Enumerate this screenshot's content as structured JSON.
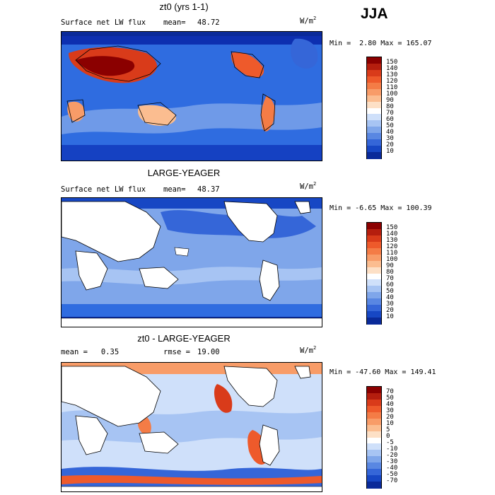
{
  "season": "JJA",
  "panels": [
    {
      "title": "zt0 (yrs 1-1)",
      "left_label": "Surface net LW flux",
      "mean_label": "mean=",
      "mean_value": "48.72",
      "units_base": "W/m",
      "units_sup": "2",
      "min_label": "Min =",
      "min_value": "2.80",
      "max_label": "Max =",
      "max_value": "165.07",
      "colorbar_ticks": [
        "150",
        "140",
        "130",
        "120",
        "110",
        "100",
        "90",
        "80",
        "70",
        "60",
        "50",
        "40",
        "30",
        "20",
        "10"
      ],
      "colorbar_colors": [
        "#8b0000",
        "#b51e0e",
        "#d93b1a",
        "#ee5a2b",
        "#f47c46",
        "#f89c68",
        "#fbbd90",
        "#fde0c6",
        "#ffffff",
        "#cfe0fa",
        "#a7c4f3",
        "#7fa6ea",
        "#5987e2",
        "#3566d8",
        "#1747c4",
        "#0a2a99"
      ],
      "map_style": "anomaly_high"
    },
    {
      "title": "LARGE-YEAGER",
      "left_label": "Surface net LW flux",
      "mean_label": "mean=",
      "mean_value": "48.37",
      "units_base": "W/m",
      "units_sup": "2",
      "min_label": "Min =",
      "min_value": "-6.65",
      "max_label": "Max =",
      "max_value": "100.39",
      "colorbar_ticks": [
        "150",
        "140",
        "130",
        "120",
        "110",
        "100",
        "90",
        "80",
        "70",
        "60",
        "50",
        "40",
        "30",
        "20",
        "10"
      ],
      "colorbar_colors": [
        "#8b0000",
        "#b51e0e",
        "#d93b1a",
        "#ee5a2b",
        "#f47c46",
        "#f89c68",
        "#fbbd90",
        "#fde0c6",
        "#ffffff",
        "#cfe0fa",
        "#a7c4f3",
        "#7fa6ea",
        "#5987e2",
        "#3566d8",
        "#1747c4",
        "#0a2a99"
      ],
      "map_style": "ocean_only"
    },
    {
      "title": "zt0 - LARGE-YEAGER",
      "left_label": "mean =   0.35",
      "mean_label": "rmse =",
      "mean_value": "19.00",
      "units_base": "W/m",
      "units_sup": "2",
      "min_label": "Min =",
      "min_value": "-47.60",
      "max_label": "Max =",
      "max_value": "149.41",
      "colorbar_ticks": [
        "70",
        "50",
        "40",
        "30",
        "20",
        "10",
        "5",
        "0",
        "-5",
        "-10",
        "-20",
        "-30",
        "-40",
        "-50",
        "-70"
      ],
      "colorbar_colors": [
        "#8b0000",
        "#b51e0e",
        "#d93b1a",
        "#ee5a2b",
        "#f47c46",
        "#f89c68",
        "#fbbd90",
        "#fde0c6",
        "#ffffff",
        "#cfe0fa",
        "#a7c4f3",
        "#7fa6ea",
        "#5987e2",
        "#3566d8",
        "#1747c4",
        "#0a2a99"
      ],
      "map_style": "diff"
    }
  ]
}
